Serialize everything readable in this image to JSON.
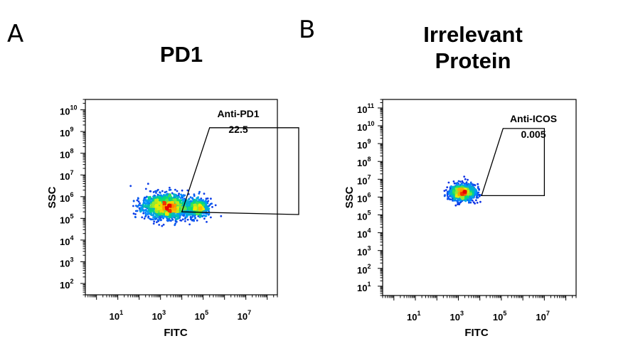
{
  "chart_data": [
    {
      "type": "scatter",
      "panel_label": "A",
      "title": "PD1",
      "xlabel": "FITC",
      "ylabel": "SSC",
      "xscale": "log",
      "yscale": "log",
      "xlim": [
        0.3,
        300000000
      ],
      "ylim": [
        30,
        30000000000
      ],
      "x_ticks": [
        1,
        3,
        5,
        7
      ],
      "y_ticks": [
        2,
        3,
        4,
        5,
        6,
        7,
        8,
        9,
        10
      ],
      "gate": {
        "name": "Anti-PD1",
        "value": "22.5",
        "vertices": [
          [
            10000,
            200000
          ],
          [
            200000,
            1500000000
          ],
          [
            3000000000,
            1500000000
          ],
          [
            3000000000,
            150000
          ]
        ]
      },
      "populations": [
        {
          "center": [
            2000,
            350000
          ],
          "spread": [
            0.55,
            0.28
          ],
          "count": 1700
        },
        {
          "center": [
            60000,
            300000
          ],
          "spread": [
            0.25,
            0.22
          ],
          "count": 450
        }
      ]
    },
    {
      "type": "scatter",
      "panel_label": "B",
      "title": "Irrelevant Protein",
      "xlabel": "FITC",
      "ylabel": "SSC",
      "xscale": "log",
      "yscale": "log",
      "xlim": [
        0.3,
        300000000
      ],
      "ylim": [
        3,
        300000000000
      ],
      "x_ticks": [
        1,
        3,
        5,
        7
      ],
      "y_ticks": [
        1,
        2,
        3,
        4,
        5,
        6,
        7,
        8,
        9,
        10,
        11
      ],
      "gate": {
        "name": "Anti-ICOS",
        "value": "0.005",
        "vertices": [
          [
            12000,
            1200000
          ],
          [
            120000,
            7000000000
          ],
          [
            10000000,
            7000000000
          ],
          [
            10000000,
            1200000
          ]
        ]
      },
      "populations": [
        {
          "center": [
            1500,
            1800000
          ],
          "spread": [
            0.3,
            0.22
          ],
          "count": 1200
        }
      ]
    }
  ]
}
